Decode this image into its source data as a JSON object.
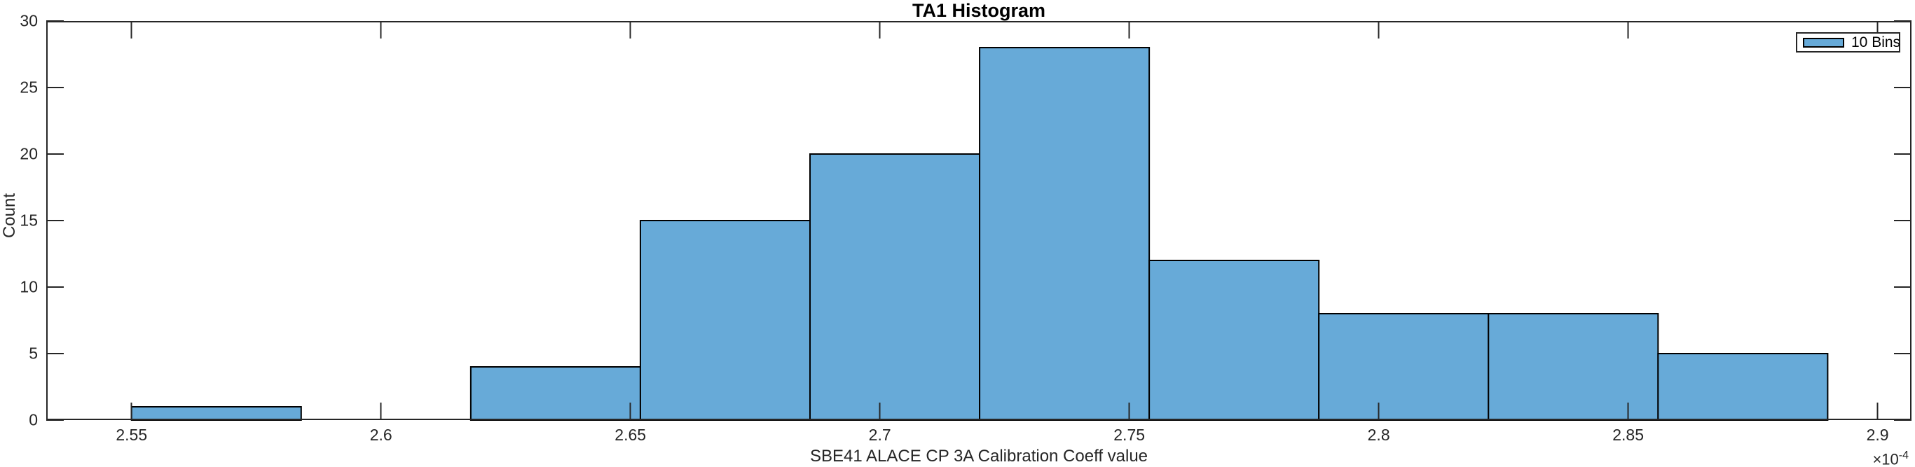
{
  "figure": {
    "title": "TA1 Histogram"
  },
  "axes": {
    "ylabel": "Count",
    "xlabel": "SBE41 ALACE CP 3A Calibration Coeff value",
    "x_offset": {
      "base": "×10",
      "exponent": "-4"
    }
  },
  "legend": {
    "entries": [
      {
        "label": "10 Bins"
      }
    ]
  },
  "chart_data": {
    "type": "bar",
    "subtype": "histogram",
    "title": "TA1 Histogram",
    "xlabel": "SBE41 ALACE CP 3A Calibration Coeff value",
    "ylabel": "Count",
    "x_unit_multiplier": "1e-4",
    "num_bins": 10,
    "bin_edges": [
      2.55,
      2.584,
      2.618,
      2.652,
      2.686,
      2.72,
      2.754,
      2.788,
      2.822,
      2.856,
      2.89
    ],
    "counts": [
      1,
      0,
      4,
      15,
      20,
      28,
      12,
      8,
      8,
      5
    ],
    "total_count": 101,
    "xlim": [
      2.5329,
      2.9068
    ],
    "ylim": [
      0,
      30
    ],
    "xticks": [
      2.55,
      2.6,
      2.65,
      2.7,
      2.75,
      2.8,
      2.85,
      2.9
    ],
    "xtick_labels": [
      "2.55",
      "2.6",
      "2.65",
      "2.7",
      "2.75",
      "2.8",
      "2.85",
      "2.9"
    ],
    "yticks": [
      0,
      5,
      10,
      15,
      20,
      25,
      30
    ],
    "ytick_labels": [
      "0",
      "5",
      "10",
      "15",
      "20",
      "25",
      "30"
    ],
    "grid": false,
    "legend": [
      "10 Bins"
    ],
    "legend_position": "northeast",
    "bar_color": "#67AAD8",
    "bar_edge_color": "#000000",
    "axis_color": "#262626",
    "tick_direction": "in"
  }
}
